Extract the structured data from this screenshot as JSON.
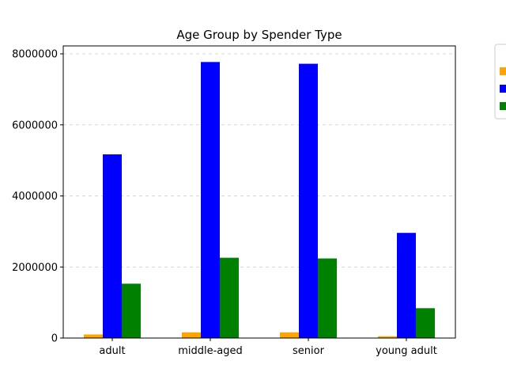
{
  "chart_data": {
    "type": "bar",
    "title": "Age Group by Spender Type",
    "xlabel": "",
    "ylabel": "",
    "categories": [
      "adult",
      "middle-aged",
      "senior",
      "young adult"
    ],
    "ylim": [
      0,
      8000000
    ],
    "yticks": [
      0,
      2000000,
      4000000,
      6000000,
      8000000
    ],
    "ytick_labels": [
      "0",
      "2000000",
      "4000000",
      "6000000",
      "8000000"
    ],
    "grid": "y-dashed",
    "legend": "outside-top-right",
    "series": [
      {
        "color": "#ffa500",
        "values": [
          100000,
          160000,
          160000,
          50000
        ]
      },
      {
        "color": "#0000ff",
        "values": [
          5170000,
          7770000,
          7720000,
          2960000
        ]
      },
      {
        "color": "#008000",
        "values": [
          1530000,
          2260000,
          2240000,
          840000
        ]
      }
    ]
  }
}
